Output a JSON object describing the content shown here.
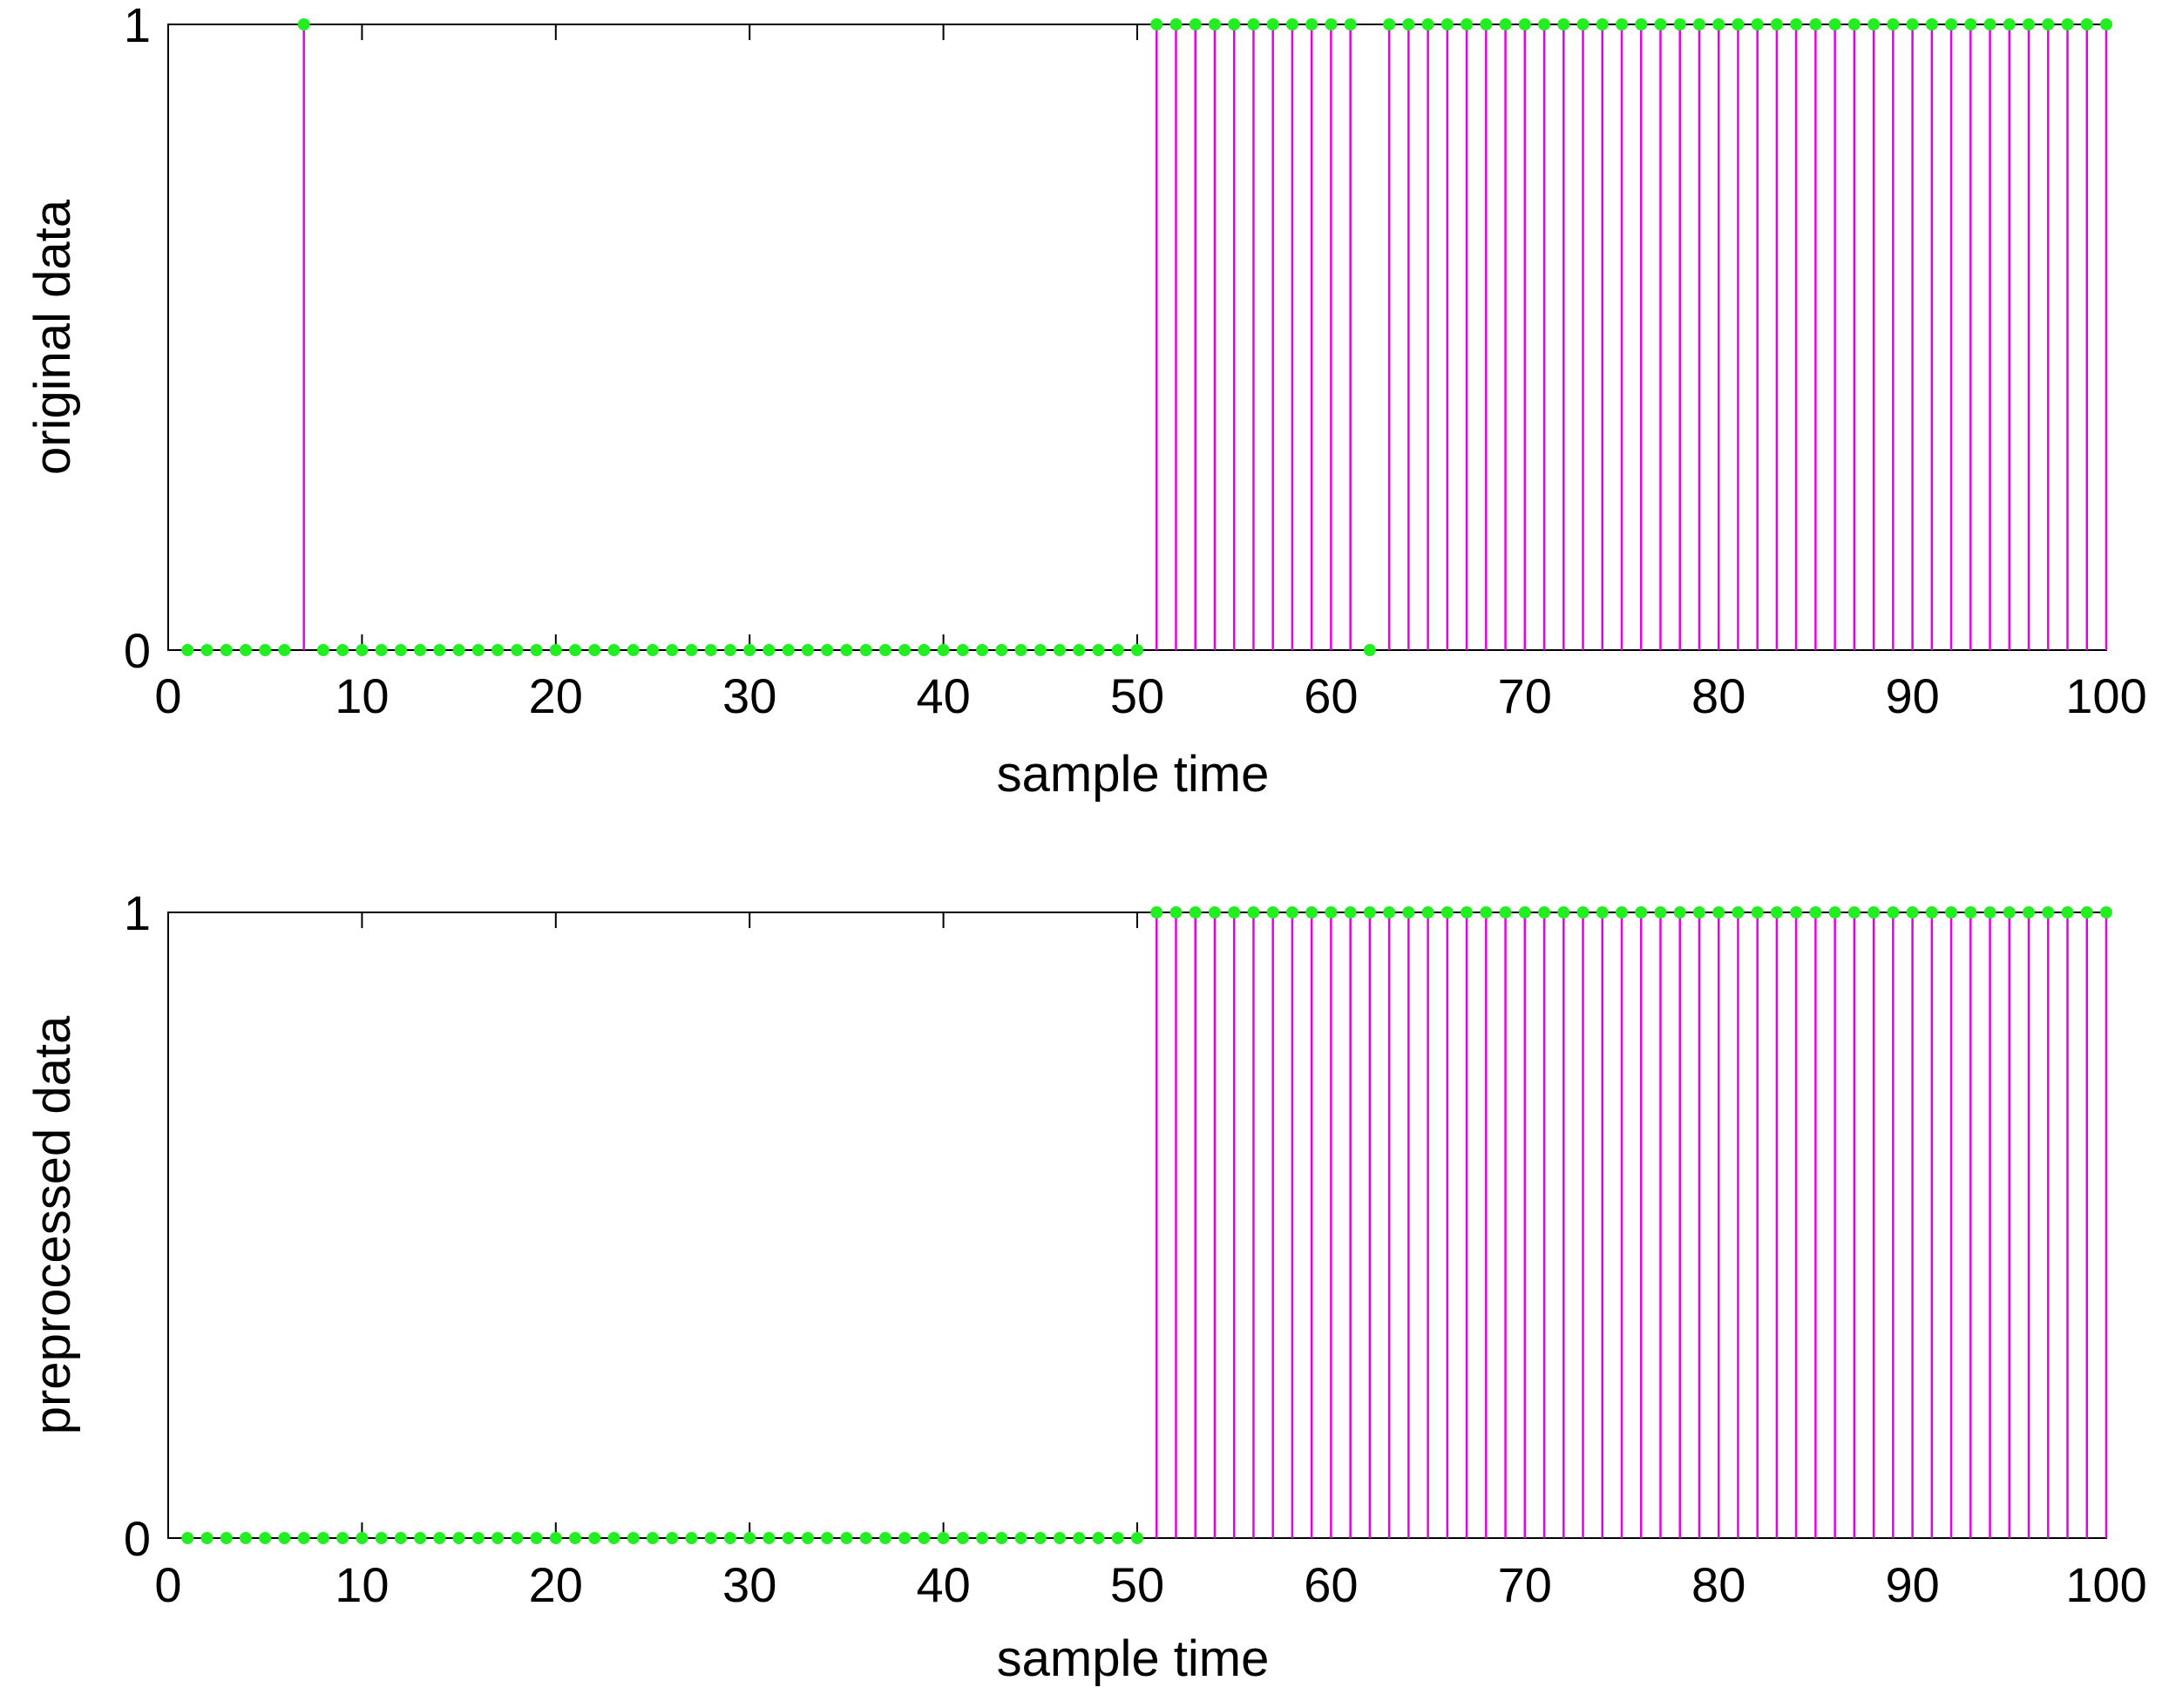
{
  "chart_data": [
    {
      "type": "stem",
      "xlabel": "sample time",
      "ylabel": "original data",
      "xlim": [
        0,
        100
      ],
      "ylim": [
        0,
        1
      ],
      "xticks": [
        "0",
        "10",
        "20",
        "30",
        "40",
        "50",
        "60",
        "70",
        "80",
        "90",
        "100"
      ],
      "yticks": [
        "0",
        "1"
      ],
      "grid": false,
      "legend": "none",
      "stem_color": "#e600e6",
      "marker_color": "#22ee22",
      "x": [
        1,
        2,
        3,
        4,
        5,
        6,
        7,
        8,
        9,
        10,
        11,
        12,
        13,
        14,
        15,
        16,
        17,
        18,
        19,
        20,
        21,
        22,
        23,
        24,
        25,
        26,
        27,
        28,
        29,
        30,
        31,
        32,
        33,
        34,
        35,
        36,
        37,
        38,
        39,
        40,
        41,
        42,
        43,
        44,
        45,
        46,
        47,
        48,
        49,
        50,
        51,
        52,
        53,
        54,
        55,
        56,
        57,
        58,
        59,
        60,
        61,
        62,
        63,
        64,
        65,
        66,
        67,
        68,
        69,
        70,
        71,
        72,
        73,
        74,
        75,
        76,
        77,
        78,
        79,
        80,
        81,
        82,
        83,
        84,
        85,
        86,
        87,
        88,
        89,
        90,
        91,
        92,
        93,
        94,
        95,
        96,
        97,
        98,
        99,
        100
      ],
      "values": [
        0,
        0,
        0,
        0,
        0,
        0,
        1,
        0,
        0,
        0,
        0,
        0,
        0,
        0,
        0,
        0,
        0,
        0,
        0,
        0,
        0,
        0,
        0,
        0,
        0,
        0,
        0,
        0,
        0,
        0,
        0,
        0,
        0,
        0,
        0,
        0,
        0,
        0,
        0,
        0,
        0,
        0,
        0,
        0,
        0,
        0,
        0,
        0,
        0,
        0,
        1,
        1,
        1,
        1,
        1,
        1,
        1,
        1,
        1,
        1,
        1,
        0,
        1,
        1,
        1,
        1,
        1,
        1,
        1,
        1,
        1,
        1,
        1,
        1,
        1,
        1,
        1,
        1,
        1,
        1,
        1,
        1,
        1,
        1,
        1,
        1,
        1,
        1,
        1,
        1,
        1,
        1,
        1,
        1,
        1,
        1,
        1,
        1,
        1,
        1
      ]
    },
    {
      "type": "stem",
      "xlabel": "sample time",
      "ylabel": "preprocessed data",
      "xlim": [
        0,
        100
      ],
      "ylim": [
        0,
        1
      ],
      "xticks": [
        "0",
        "10",
        "20",
        "30",
        "40",
        "50",
        "60",
        "70",
        "80",
        "90",
        "100"
      ],
      "yticks": [
        "0",
        "1"
      ],
      "grid": false,
      "legend": "none",
      "stem_color": "#e600e6",
      "marker_color": "#22ee22",
      "x": [
        1,
        2,
        3,
        4,
        5,
        6,
        7,
        8,
        9,
        10,
        11,
        12,
        13,
        14,
        15,
        16,
        17,
        18,
        19,
        20,
        21,
        22,
        23,
        24,
        25,
        26,
        27,
        28,
        29,
        30,
        31,
        32,
        33,
        34,
        35,
        36,
        37,
        38,
        39,
        40,
        41,
        42,
        43,
        44,
        45,
        46,
        47,
        48,
        49,
        50,
        51,
        52,
        53,
        54,
        55,
        56,
        57,
        58,
        59,
        60,
        61,
        62,
        63,
        64,
        65,
        66,
        67,
        68,
        69,
        70,
        71,
        72,
        73,
        74,
        75,
        76,
        77,
        78,
        79,
        80,
        81,
        82,
        83,
        84,
        85,
        86,
        87,
        88,
        89,
        90,
        91,
        92,
        93,
        94,
        95,
        96,
        97,
        98,
        99,
        100
      ],
      "values": [
        0,
        0,
        0,
        0,
        0,
        0,
        0,
        0,
        0,
        0,
        0,
        0,
        0,
        0,
        0,
        0,
        0,
        0,
        0,
        0,
        0,
        0,
        0,
        0,
        0,
        0,
        0,
        0,
        0,
        0,
        0,
        0,
        0,
        0,
        0,
        0,
        0,
        0,
        0,
        0,
        0,
        0,
        0,
        0,
        0,
        0,
        0,
        0,
        0,
        0,
        1,
        1,
        1,
        1,
        1,
        1,
        1,
        1,
        1,
        1,
        1,
        1,
        1,
        1,
        1,
        1,
        1,
        1,
        1,
        1,
        1,
        1,
        1,
        1,
        1,
        1,
        1,
        1,
        1,
        1,
        1,
        1,
        1,
        1,
        1,
        1,
        1,
        1,
        1,
        1,
        1,
        1,
        1,
        1,
        1,
        1,
        1,
        1,
        1,
        1
      ]
    }
  ]
}
